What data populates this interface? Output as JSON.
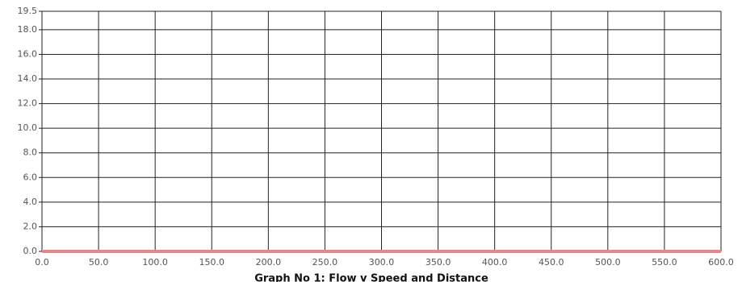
{
  "chart_data": {
    "type": "line",
    "title": "Graph No 1: Flow v Speed and Distance",
    "x": [
      0,
      600
    ],
    "series": [
      {
        "color": "#e8868c",
        "values": [
          0,
          0
        ]
      }
    ],
    "xlim": [
      0,
      600
    ],
    "ylim": [
      0,
      19.5
    ],
    "xticks": [
      {
        "value": 0,
        "label": "0.0"
      },
      {
        "value": 50,
        "label": "50.0"
      },
      {
        "value": 100,
        "label": "100.0"
      },
      {
        "value": 150,
        "label": "150.0"
      },
      {
        "value": 200,
        "label": "200.0"
      },
      {
        "value": 250,
        "label": "250.0"
      },
      {
        "value": 300,
        "label": "300.0"
      },
      {
        "value": 350,
        "label": "350.0"
      },
      {
        "value": 400,
        "label": "400.0"
      },
      {
        "value": 450,
        "label": "450.0"
      },
      {
        "value": 500,
        "label": "500.0"
      },
      {
        "value": 550,
        "label": "550.0"
      },
      {
        "value": 600,
        "label": "600.0"
      }
    ],
    "yticks": [
      {
        "value": 0,
        "label": "0.0"
      },
      {
        "value": 2,
        "label": "2.0"
      },
      {
        "value": 4,
        "label": "4.0"
      },
      {
        "value": 6,
        "label": "6.0"
      },
      {
        "value": 8,
        "label": "8.0"
      },
      {
        "value": 10,
        "label": "10.0"
      },
      {
        "value": 12,
        "label": "12.0"
      },
      {
        "value": 14,
        "label": "14.0"
      },
      {
        "value": 16,
        "label": "16.0"
      },
      {
        "value": 18,
        "label": "18.0"
      },
      19.5
    ],
    "grid": true
  }
}
